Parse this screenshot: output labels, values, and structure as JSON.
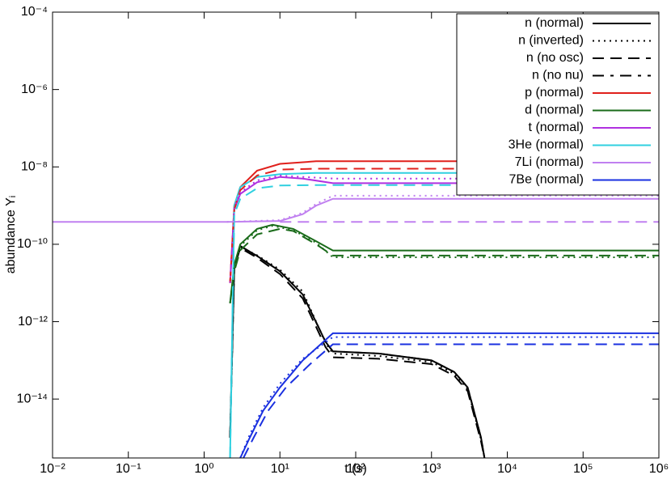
{
  "chart_data": {
    "type": "line",
    "xlabel": "t (s)",
    "ylabel": "abundance Yᵢ",
    "xscale": "log",
    "yscale": "log",
    "xlim": [
      0.01,
      1000000
    ],
    "ylim": [
      3e-16,
      0.0001
    ],
    "xticks": [
      {
        "value": 0.01,
        "label": "10⁻²"
      },
      {
        "value": 0.1,
        "label": "10⁻¹"
      },
      {
        "value": 1,
        "label": "10⁰"
      },
      {
        "value": 10,
        "label": "10¹"
      },
      {
        "value": 100,
        "label": "10²"
      },
      {
        "value": 1000,
        "label": "10³"
      },
      {
        "value": 10000,
        "label": "10⁴"
      },
      {
        "value": 100000,
        "label": "10⁵"
      },
      {
        "value": 1000000,
        "label": "10⁶"
      }
    ],
    "yticks": [
      {
        "value": 0.0001,
        "label": "10⁻⁴"
      },
      {
        "value": 1e-06,
        "label": "10⁻⁶"
      },
      {
        "value": 1e-08,
        "label": "10⁻⁸"
      },
      {
        "value": 1e-10,
        "label": "10⁻¹⁰"
      },
      {
        "value": 1e-12,
        "label": "10⁻¹²"
      },
      {
        "value": 1e-14,
        "label": "10⁻¹⁴"
      }
    ],
    "legend": "top-right",
    "series": [
      {
        "name": "n (normal)",
        "color": "#000000",
        "dash": "solid",
        "x": [
          2.2,
          2.5,
          3,
          5,
          10,
          20,
          40,
          50,
          200,
          1000,
          2000,
          3000,
          4500,
          5000
        ],
        "values": [
          1e-15,
          3e-11,
          9e-11,
          5e-11,
          2e-11,
          5e-12,
          3e-13,
          1.7e-13,
          1.5e-13,
          1e-13,
          5e-14,
          2e-14,
          1e-15,
          3e-16
        ]
      },
      {
        "name": "n (inverted)",
        "color": "#000000",
        "dash": "dotted",
        "x": [
          2.2,
          2.5,
          3,
          5,
          10,
          20,
          40,
          50,
          200,
          1000,
          2000,
          3000,
          4500,
          5000
        ],
        "values": [
          1e-15,
          2.8e-11,
          8.5e-11,
          5.2e-11,
          2.2e-11,
          6e-12,
          2.8e-13,
          1.5e-13,
          1.3e-13,
          9e-14,
          4.5e-14,
          1.8e-14,
          9e-16,
          3e-16
        ]
      },
      {
        "name": "n (no osc)",
        "color": "#000000",
        "dash": "dashed",
        "x": [
          2.2,
          2.5,
          3,
          5,
          10,
          20,
          40,
          50,
          200,
          1000,
          2000,
          3000,
          4500,
          5000
        ],
        "values": [
          1e-15,
          2.5e-11,
          8e-11,
          4.5e-11,
          1.7e-11,
          4e-12,
          2.2e-13,
          1.2e-13,
          1.1e-13,
          8e-14,
          4e-14,
          1.6e-14,
          8e-16,
          3e-16
        ]
      },
      {
        "name": "n (no nu)",
        "color": "#000000",
        "dash": "dashdot",
        "x": [
          2.2,
          2.5,
          3,
          5,
          10,
          20,
          40,
          50,
          200,
          1000,
          2000,
          3000,
          4500,
          5000
        ],
        "values": [
          1e-15,
          3e-11,
          9e-11,
          5e-11,
          2e-11,
          5e-12,
          3e-13,
          1.7e-13,
          1.5e-13,
          1e-13,
          5e-14,
          2e-14,
          1e-15,
          3e-16
        ]
      },
      {
        "name": "p (normal)",
        "color": "#e0201c",
        "dash": "solid",
        "x": [
          2.2,
          2.5,
          3,
          5,
          10,
          30,
          1000000
        ],
        "values": [
          1e-11,
          1e-09,
          3e-09,
          8e-09,
          1.2e-08,
          1.4e-08,
          1.4e-08
        ]
      },
      {
        "name": "d (normal)",
        "color": "#1a6b1a",
        "dash": "solid",
        "x": [
          2.2,
          2.5,
          3,
          5,
          8,
          15,
          30,
          50,
          1000000
        ],
        "values": [
          3e-12,
          3e-11,
          1e-10,
          2.5e-10,
          3.2e-10,
          2.5e-10,
          1.2e-10,
          6.9e-11,
          6.9e-11
        ]
      },
      {
        "name": "t (normal)",
        "color": "#b030e0",
        "dash": "solid",
        "x": [
          2.2,
          2.5,
          3,
          5,
          10,
          20,
          50,
          1000000
        ],
        "values": [
          1e-11,
          8e-10,
          2e-09,
          4e-09,
          5.5e-09,
          5e-09,
          3.8e-09,
          3.8e-09
        ]
      },
      {
        "name": "3He (normal)",
        "color": "#30d0e0",
        "dash": "solid",
        "x": [
          2.2,
          2.5,
          3,
          5,
          10,
          30,
          1000000
        ],
        "values": [
          3e-16,
          1e-09,
          3e-09,
          5.5e-09,
          6.5e-09,
          7e-09,
          7e-09
        ]
      },
      {
        "name": "7Li (normal)",
        "color": "#c080f0",
        "dash": "solid",
        "x": [
          0.01,
          2,
          10,
          20,
          30,
          50,
          1000000
        ],
        "values": [
          3.8e-10,
          3.8e-10,
          4e-10,
          6e-10,
          1e-09,
          1.5e-09,
          1.5e-09
        ]
      },
      {
        "name": "7Be (normal)",
        "color": "#1a30e0",
        "dash": "solid",
        "x": [
          3,
          4,
          6,
          10,
          20,
          50,
          1000000
        ],
        "values": [
          3e-16,
          1e-15,
          5e-15,
          2e-14,
          1e-13,
          5e-13,
          5e-13
        ]
      },
      {
        "color": "#e0201c",
        "dash": "dashed",
        "x": [
          2.2,
          2.5,
          3,
          5,
          10,
          30,
          1000000
        ],
        "values": [
          1e-11,
          8e-10,
          2.5e-09,
          6e-09,
          8.5e-09,
          9e-09,
          9e-09
        ]
      },
      {
        "color": "#1a6b1a",
        "dash": "dashed",
        "x": [
          2.2,
          2.5,
          3,
          5,
          10,
          15,
          30,
          50,
          1000000
        ],
        "values": [
          3e-12,
          2e-11,
          7e-11,
          1.8e-10,
          2.5e-10,
          2.2e-10,
          1e-10,
          5.1e-11,
          5.1e-11
        ]
      },
      {
        "color": "#1a6b1a",
        "dash": "dotted",
        "x": [
          2.2,
          2.5,
          3,
          5,
          8,
          15,
          30,
          50,
          1000000
        ],
        "values": [
          3e-12,
          2.8e-11,
          9e-11,
          2.3e-10,
          3e-10,
          2.3e-10,
          1.1e-10,
          4.6e-11,
          4.6e-11
        ]
      },
      {
        "color": "#b030e0",
        "dash": "dotted",
        "x": [
          2.2,
          2.5,
          3,
          5,
          10,
          20,
          50,
          1000000
        ],
        "values": [
          1e-11,
          9e-10,
          2.2e-09,
          4.5e-09,
          6e-09,
          5.5e-09,
          5e-09,
          5e-09
        ]
      },
      {
        "color": "#30d0e0",
        "dash": "dashed",
        "x": [
          2.2,
          2.5,
          3,
          5,
          10,
          30,
          1000000
        ],
        "values": [
          3e-16,
          6e-10,
          1.5e-09,
          2.8e-09,
          3.3e-09,
          3.4e-09,
          3.4e-09
        ]
      },
      {
        "color": "#c080f0",
        "dash": "dashed",
        "x": [
          10,
          1000000
        ],
        "values": [
          3.8e-10,
          3.8e-10
        ]
      },
      {
        "color": "#c080f0",
        "dash": "dotted",
        "x": [
          2,
          10,
          20,
          30,
          50,
          1000000
        ],
        "values": [
          3.8e-10,
          4.2e-10,
          6.5e-10,
          1.1e-09,
          1.8e-09,
          1.8e-09
        ]
      },
      {
        "color": "#1a30e0",
        "dash": "dotted",
        "x": [
          3,
          4,
          6,
          10,
          20,
          50,
          1000000
        ],
        "values": [
          3e-16,
          1.2e-15,
          6e-15,
          2.5e-14,
          1.1e-13,
          4e-13,
          4e-13
        ]
      },
      {
        "color": "#1a30e0",
        "dash": "dashed",
        "x": [
          3.3,
          4.5,
          7,
          12,
          25,
          50,
          1000000
        ],
        "values": [
          3e-16,
          1e-15,
          5e-15,
          2e-14,
          8e-14,
          2.6e-13,
          2.6e-13
        ]
      }
    ]
  }
}
